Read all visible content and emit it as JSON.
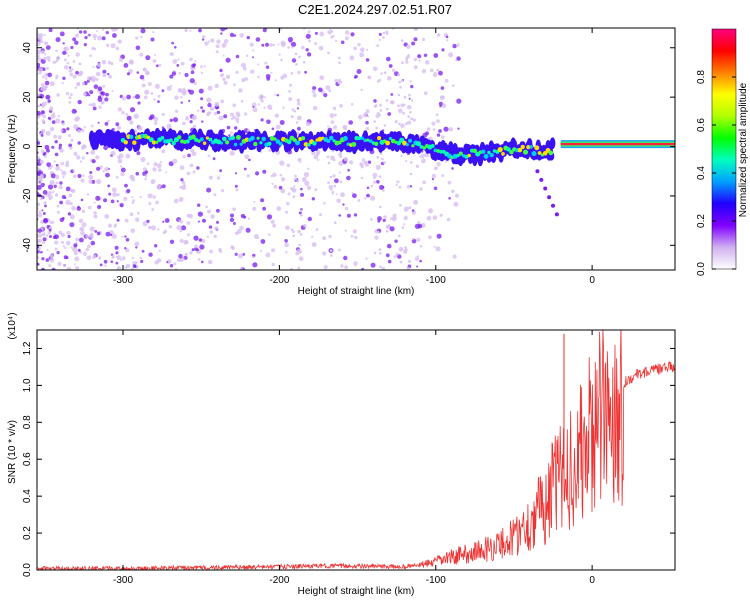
{
  "title": "C2E1.2024.297.02.51.R07",
  "chart_data": [
    {
      "type": "heatmap",
      "xlabel": "Height of straight line (km)",
      "ylabel": "Frequency (Hz)",
      "xlim": [
        -355,
        53
      ],
      "ylim": [
        -50,
        48
      ],
      "xticks": [
        "-300",
        "-200",
        "-100",
        "0"
      ],
      "yticks": [
        "-40",
        "-20",
        "0",
        "20",
        "40"
      ],
      "xtick_values": [
        -300,
        -200,
        -100,
        0
      ],
      "ytick_values": [
        -40,
        -20,
        0,
        20,
        40
      ],
      "colorbar": {
        "label": "Normalized spectral amplitude",
        "ticks": [
          "0.0",
          "0.2",
          "0.4",
          "0.6",
          "0.8"
        ],
        "tick_values": [
          0.0,
          0.2,
          0.4,
          0.6,
          0.8
        ],
        "range": [
          0.0,
          1.0
        ],
        "colors": [
          "#ffffff",
          "#d0b0f0",
          "#8000ff",
          "#2000ff",
          "#00a0ff",
          "#00ffc0",
          "#00ff00",
          "#b0ff00",
          "#ffff00",
          "#ff8000",
          "#ff0000",
          "#ff0080"
        ]
      },
      "ridge": [
        {
          "x": -355,
          "y": 4
        },
        {
          "x": -300,
          "y": 3
        },
        {
          "x": -250,
          "y": 2.5
        },
        {
          "x": -200,
          "y": 2
        },
        {
          "x": -150,
          "y": 2
        },
        {
          "x": -120,
          "y": 2
        },
        {
          "x": -100,
          "y": -1
        },
        {
          "x": -90,
          "y": -3
        },
        {
          "x": -70,
          "y": -3
        },
        {
          "x": -60,
          "y": -2
        },
        {
          "x": -50,
          "y": -1
        },
        {
          "x": -40,
          "y": -1
        },
        {
          "x": -30,
          "y": -3
        },
        {
          "x": -20,
          "y": 1
        },
        {
          "x": 0,
          "y": 1
        },
        {
          "x": 53,
          "y": 1
        }
      ],
      "grid": false
    },
    {
      "type": "line",
      "xlabel": "Height of straight line (km)",
      "ylabel": "SNR (10 * v/v)",
      "multiplier": "(x10⁴)",
      "xlim": [
        -355,
        53
      ],
      "ylim": [
        0,
        1.3
      ],
      "xticks": [
        "-300",
        "-200",
        "-100",
        "0"
      ],
      "yticks": [
        "0.0",
        "0.2",
        "0.4",
        "0.6",
        "0.8",
        "1.0",
        "1.2"
      ],
      "xtick_values": [
        -300,
        -200,
        -100,
        0
      ],
      "ytick_values": [
        0.0,
        0.2,
        0.4,
        0.6,
        0.8,
        1.0,
        1.2
      ],
      "series": [
        {
          "color": "#ee3333",
          "x": [
            -355,
            -300,
            -250,
            -200,
            -170,
            -120,
            -110,
            -100,
            -90,
            -80,
            -70,
            -60,
            -50,
            -45,
            -40,
            -35,
            -30,
            -25,
            -20,
            -18,
            -15,
            -12,
            -10,
            -5,
            0,
            10,
            20,
            30,
            40,
            53
          ],
          "y": [
            0.01,
            0.01,
            0.015,
            0.02,
            0.025,
            0.02,
            0.03,
            0.05,
            0.08,
            0.1,
            0.12,
            0.15,
            0.2,
            0.25,
            0.28,
            0.35,
            0.4,
            0.5,
            0.55,
            0.6,
            0.62,
            0.65,
            0.68,
            0.72,
            0.85,
            0.95,
            1.02,
            1.07,
            1.09,
            1.11
          ]
        }
      ],
      "spike": {
        "x": -18,
        "y": 1.28
      },
      "grid": false
    }
  ]
}
